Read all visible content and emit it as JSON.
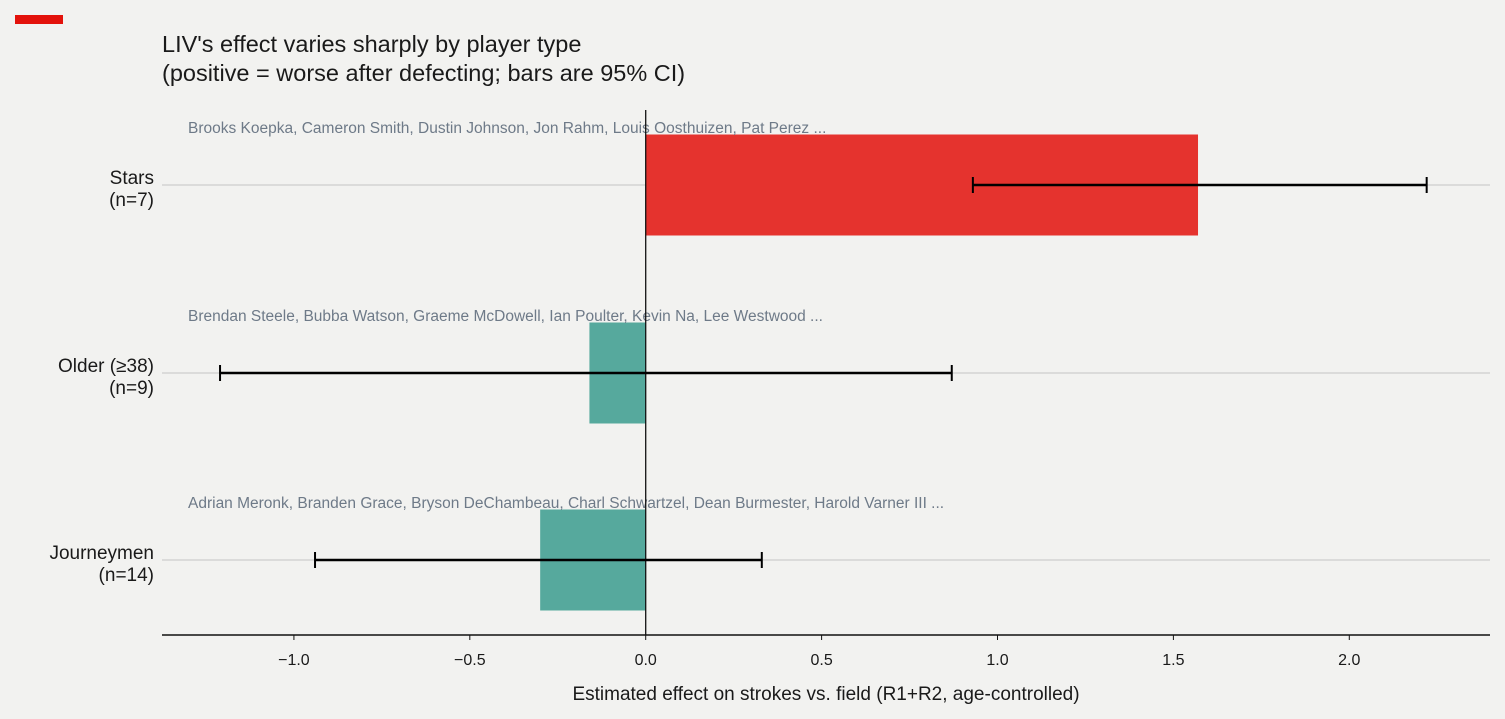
{
  "header": {
    "title_line1": "LIV's effect varies sharply by player type",
    "title_line2": "(positive = worse after defecting; bars are 95% CI)"
  },
  "colors": {
    "background": "#f2f2f0",
    "brand": "#e3120b",
    "positive": "#e5332e",
    "negative": "#56a99d",
    "annotation": "#6e7a88",
    "text": "#1a1a1a",
    "grid": "#c4c4c4"
  },
  "chart_data": {
    "type": "bar",
    "orientation": "horizontal",
    "xlabel": "Estimated effect on strokes vs. field (R1+R2, age-controlled)",
    "xlim": [
      -1.375,
      2.4
    ],
    "xticks": [
      -1.0,
      -0.5,
      0.0,
      0.5,
      1.0,
      1.5,
      2.0
    ],
    "xtick_labels": [
      "−1.0",
      "−0.5",
      "0.0",
      "0.5",
      "1.0",
      "1.5",
      "2.0"
    ],
    "grid": "horizontal at each category",
    "categories": [
      {
        "label_line1": "Stars",
        "label_line2": "(n=7)",
        "value": 1.57,
        "ci": [
          0.93,
          2.22
        ],
        "players": "Brooks Koepka, Cameron Smith, Dustin Johnson, Jon Rahm, Louis Oosthuizen, Pat Perez ..."
      },
      {
        "label_line1": "Older (≥38)",
        "label_line2": "(n=9)",
        "value": -0.16,
        "ci": [
          -1.21,
          0.87
        ],
        "players": "Brendan Steele, Bubba Watson, Graeme McDowell, Ian Poulter, Kevin Na, Lee Westwood ..."
      },
      {
        "label_line1": "Journeymen",
        "label_line2": "(n=14)",
        "value": -0.3,
        "ci": [
          -0.94,
          0.33
        ],
        "players": "Adrian Meronk, Branden Grace, Bryson DeChambeau, Charl Schwartzel, Dean Burmester, Harold Varner III ..."
      }
    ]
  }
}
